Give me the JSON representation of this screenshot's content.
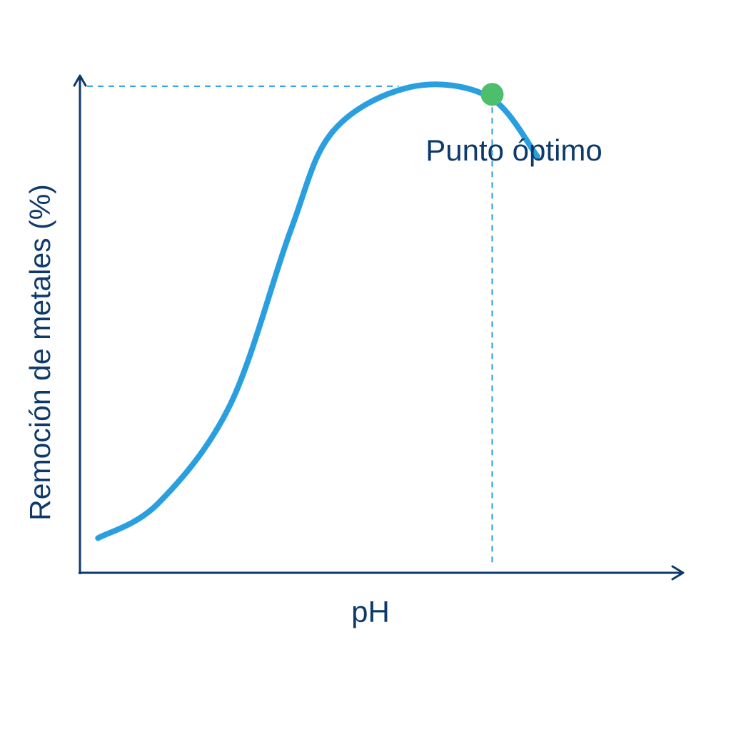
{
  "chart_data": {
    "type": "line",
    "xlabel": "pH",
    "ylabel": "Remoción de metales (%)",
    "series": [
      {
        "points": [
          [
            0.03,
            0.07
          ],
          [
            0.13,
            0.14
          ],
          [
            0.25,
            0.34
          ],
          [
            0.35,
            0.69
          ],
          [
            0.42,
            0.89
          ],
          [
            0.55,
            0.98
          ],
          [
            0.68,
            0.96
          ],
          [
            0.76,
            0.84
          ]
        ]
      }
    ],
    "annotation": {
      "label": "Punto óptimo",
      "x": 0.685,
      "y": 0.965
    },
    "colors": {
      "axis": "#0e3a6b",
      "line": "#2a9fe0",
      "guide": "#2a9fe0",
      "marker": "#4cbe6c"
    }
  }
}
